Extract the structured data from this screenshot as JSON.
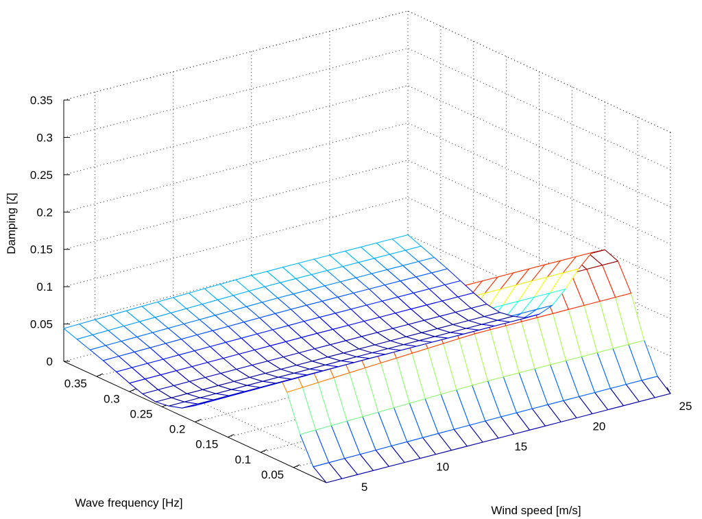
{
  "chart_data": {
    "type": "surface",
    "title": "",
    "xlabel": "Wind speed [m/s]",
    "ylabel": "Wave frequency [Hz]",
    "zlabel": "Damping [ζ]",
    "xlim": [
      3,
      25
    ],
    "ylim": [
      0,
      0.4
    ],
    "zlim": [
      0,
      0.35
    ],
    "x_ticks": [
      5,
      10,
      15,
      20,
      25
    ],
    "x_tick_labels": [
      "5",
      "10",
      "15",
      "20",
      "25"
    ],
    "y_ticks": [
      0.05,
      0.1,
      0.15,
      0.2,
      0.25,
      0.3,
      0.35
    ],
    "y_tick_labels": [
      "0.05",
      "0.1",
      "0.15",
      "0.2",
      "0.25",
      "0.3",
      "0.35"
    ],
    "z_ticks": [
      0,
      0.05,
      0.1,
      0.15,
      0.2,
      0.25,
      0.3,
      0.35
    ],
    "z_tick_labels": [
      "0",
      "0.05",
      "0.1",
      "0.15",
      "0.2",
      "0.25",
      "0.3",
      "0.35"
    ],
    "grid": true,
    "colormap": "jet",
    "surface": {
      "wind_speed": [
        3,
        4,
        5,
        6,
        7,
        8,
        9,
        10,
        11,
        12,
        13,
        14,
        15,
        16,
        17,
        18,
        19,
        20,
        21,
        22,
        23,
        24,
        25
      ],
      "wave_frequency": [
        0.0,
        0.02,
        0.04,
        0.06,
        0.08,
        0.1,
        0.12,
        0.14,
        0.16,
        0.18,
        0.2,
        0.22,
        0.24,
        0.26,
        0.28,
        0.3,
        0.32,
        0.34,
        0.36,
        0.38,
        0.4
      ],
      "damping_by_frequency": [
        0.0,
        0.015,
        0.055,
        0.11,
        0.145,
        0.152,
        0.14,
        0.11,
        0.075,
        0.045,
        0.025,
        0.012,
        0.006,
        0.003,
        0.006,
        0.013,
        0.021,
        0.029,
        0.036,
        0.043,
        0.05
      ],
      "wind_speed_scale": [
        0.88,
        0.89,
        0.9,
        0.91,
        0.92,
        0.93,
        0.94,
        0.95,
        0.96,
        0.97,
        0.98,
        0.99,
        1.0,
        1.0,
        1.0,
        1.0,
        1.0,
        1.0,
        1.0,
        1.0,
        1.0,
        1.0,
        1.0
      ]
    }
  }
}
